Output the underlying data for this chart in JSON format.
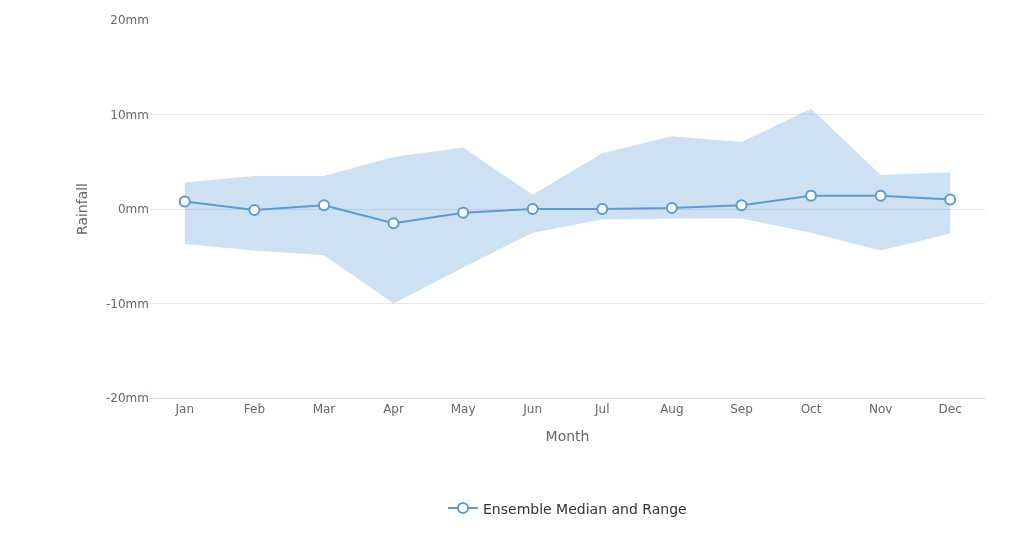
{
  "chart_data": {
    "type": "line",
    "xlabel": "Month",
    "ylabel": "Rainfall",
    "categories": [
      "Jan",
      "Feb",
      "Mar",
      "Apr",
      "May",
      "Jun",
      "Jul",
      "Aug",
      "Sep",
      "Oct",
      "Nov",
      "Dec"
    ],
    "series": [
      {
        "name": "Ensemble Median and Range",
        "color": "#5b9bd5",
        "values": [
          0.8,
          -0.1,
          0.4,
          -1.5,
          -0.4,
          0,
          0,
          0.1,
          0.4,
          1.4,
          1.4,
          1.0
        ],
        "lower": [
          -3.7,
          -4.4,
          -4.9,
          -10,
          -6.2,
          -2.5,
          -1.1,
          -1,
          -1,
          -2.5,
          -4.4,
          -2.6
        ],
        "upper": [
          2.8,
          3.5,
          3.5,
          5.5,
          6.5,
          1.5,
          5.9,
          7.7,
          7.1,
          10.6,
          3.6,
          3.9
        ]
      }
    ],
    "ylim": [
      -20,
      20
    ],
    "yticks": [
      {
        "value": -20,
        "label": "-20mm"
      },
      {
        "value": -10,
        "label": "-10mm"
      },
      {
        "value": 0,
        "label": "0mm"
      },
      {
        "value": 10,
        "label": "10mm"
      },
      {
        "value": 20,
        "label": "20mm"
      }
    ],
    "grid": "y",
    "legend": "bottom",
    "marker": "circle",
    "line_style": "solid"
  }
}
